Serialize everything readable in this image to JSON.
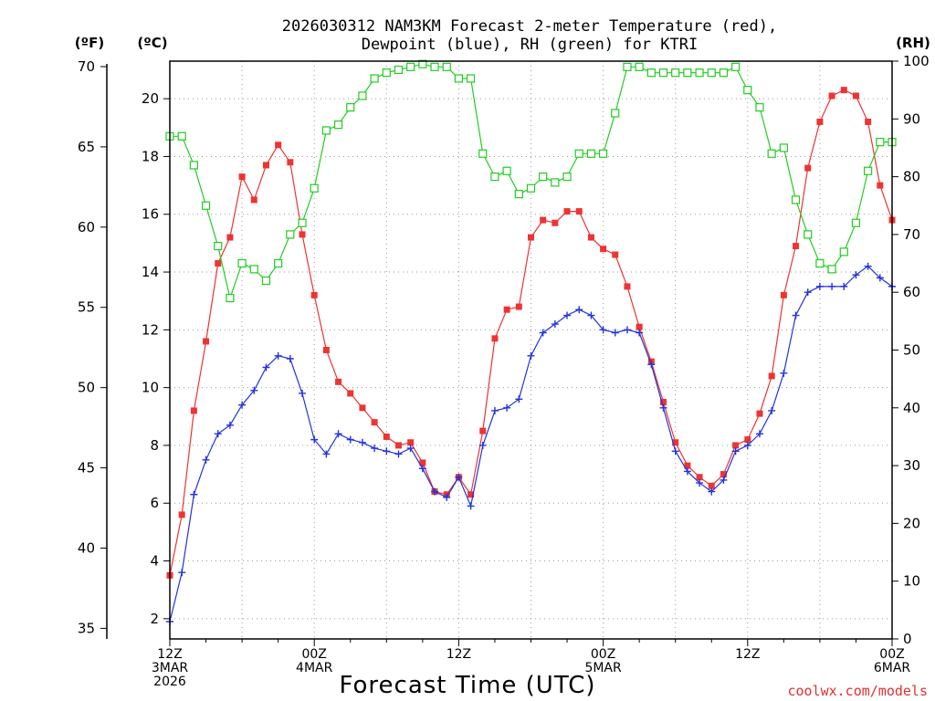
{
  "chart_data": {
    "type": "line",
    "title_line1": "2026030312 NAM3KM Forecast 2-meter Temperature (red),",
    "title_line2": "Dewpoint (blue), RH (green) for KTRI",
    "units": {
      "fahrenheit": "(ºF)",
      "celsius": "(ºC)",
      "rh": "(RH)"
    },
    "xlabel": "Forecast Time (UTC)",
    "credit": "coolwx.com/models",
    "x_range_hours": [
      0,
      60
    ],
    "x_ticks": [
      {
        "hour": 0,
        "lines": [
          "12Z",
          "3MAR",
          "2026"
        ]
      },
      {
        "hour": 12,
        "lines": [
          "00Z",
          "4MAR"
        ]
      },
      {
        "hour": 24,
        "lines": [
          "12Z"
        ]
      },
      {
        "hour": 36,
        "lines": [
          "00Z",
          "5MAR"
        ]
      },
      {
        "hour": 48,
        "lines": [
          "12Z"
        ]
      },
      {
        "hour": 60,
        "lines": [
          "00Z",
          "6MAR"
        ]
      }
    ],
    "celsius_axis": {
      "range": [
        1.3,
        21.3
      ],
      "ticks": [
        2,
        4,
        6,
        8,
        10,
        12,
        14,
        16,
        18,
        20
      ]
    },
    "fahrenheit_axis": {
      "ticks": [
        35,
        40,
        45,
        50,
        55,
        60,
        65,
        70
      ]
    },
    "rh_axis": {
      "range": [
        0,
        100
      ],
      "ticks": [
        0,
        10,
        20,
        30,
        40,
        50,
        60,
        70,
        80,
        90,
        100
      ]
    },
    "grid": true,
    "series": [
      {
        "name": "Temperature",
        "color": "#ee3333",
        "marker": "filled-square",
        "axis": "celsius",
        "values": [
          3.5,
          5.6,
          9.2,
          11.6,
          14.3,
          15.2,
          17.3,
          16.5,
          17.7,
          18.4,
          17.8,
          15.3,
          13.2,
          11.3,
          10.2,
          9.8,
          9.3,
          8.8,
          8.3,
          8.0,
          8.1,
          7.4,
          6.4,
          6.3,
          6.9,
          6.3,
          8.5,
          11.7,
          12.7,
          12.8,
          15.2,
          15.8,
          15.7,
          16.1,
          16.1,
          15.2,
          14.8,
          14.6,
          13.5,
          12.1,
          10.9,
          9.5,
          8.1,
          7.3,
          6.9,
          6.6,
          7.0,
          8.0,
          8.2,
          9.1,
          10.4,
          13.2,
          14.9,
          17.6,
          19.2,
          20.1,
          20.3,
          20.1,
          19.2,
          17.0,
          15.8
        ]
      },
      {
        "name": "Dewpoint",
        "color": "#2233dd",
        "marker": "plus",
        "axis": "celsius",
        "values": [
          1.9,
          3.6,
          6.3,
          7.5,
          8.4,
          8.7,
          9.4,
          9.9,
          10.7,
          11.1,
          11.0,
          9.8,
          8.2,
          7.7,
          8.4,
          8.2,
          8.1,
          7.9,
          7.8,
          7.7,
          7.9,
          7.2,
          6.4,
          6.2,
          6.9,
          5.9,
          8.0,
          9.2,
          9.3,
          9.6,
          11.1,
          11.9,
          12.2,
          12.5,
          12.7,
          12.5,
          12.0,
          11.9,
          12.0,
          11.9,
          10.8,
          9.3,
          7.8,
          7.1,
          6.7,
          6.4,
          6.8,
          7.8,
          8.0,
          8.4,
          9.2,
          10.5,
          12.5,
          13.3,
          13.5,
          13.5,
          13.5,
          13.9,
          14.2,
          13.8,
          13.5
        ]
      },
      {
        "name": "RH",
        "color": "#22cc22",
        "marker": "open-square",
        "axis": "rh",
        "values": [
          87,
          87,
          82,
          75,
          68,
          59,
          65,
          64,
          62,
          65,
          70,
          72,
          78,
          88,
          89,
          92,
          94,
          97,
          98,
          98.5,
          99,
          99.5,
          99,
          99,
          97,
          97,
          84,
          80,
          81,
          77,
          78,
          80,
          79,
          80,
          84,
          84,
          84,
          91,
          99,
          99,
          98,
          98,
          98,
          98,
          98,
          98,
          98,
          99,
          95,
          92,
          84,
          85,
          76,
          70,
          65,
          64,
          67,
          72,
          81,
          86,
          86
        ]
      }
    ]
  }
}
